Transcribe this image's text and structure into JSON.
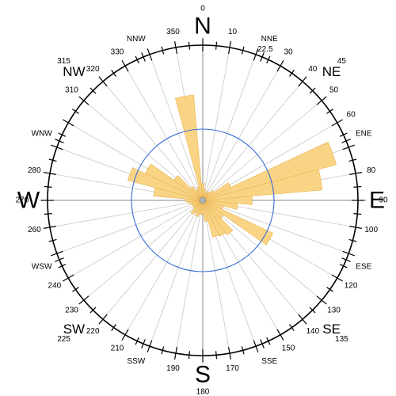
{
  "chart_data": {
    "type": "polar-rose",
    "grid": true,
    "ring": {
      "color": "#3a6fd8",
      "label": ""
    },
    "colors": {
      "sector_fill": "#f9d27e",
      "sector_stroke": "#e8b24d",
      "axis": "#000000",
      "grid": "#c8c8c8",
      "cross": "#8a8a8a"
    },
    "cardinal_labels": [
      {
        "text": "N",
        "deg": 0
      },
      {
        "text": "E",
        "deg": 90
      },
      {
        "text": "S",
        "deg": 180
      },
      {
        "text": "W",
        "deg": 270
      }
    ],
    "intercardinal_labels": [
      {
        "text": "NE",
        "deg": 45
      },
      {
        "text": "SE",
        "deg": 135
      },
      {
        "text": "SW",
        "deg": 225
      },
      {
        "text": "NW",
        "deg": 315
      }
    ],
    "minor_labels": [
      {
        "text": "NNE",
        "deg": 22.5
      },
      {
        "text": "ENE",
        "deg": 67.5
      },
      {
        "text": "ESE",
        "deg": 112.5
      },
      {
        "text": "SSE",
        "deg": 157.5
      },
      {
        "text": "SSW",
        "deg": 202.5
      },
      {
        "text": "WSW",
        "deg": 247.5
      },
      {
        "text": "WNW",
        "deg": 292.5
      },
      {
        "text": "NNW",
        "deg": 337.5
      }
    ],
    "degree_labels": [
      {
        "text": "0",
        "deg": 0
      },
      {
        "text": "10",
        "deg": 10
      },
      {
        "text": "22.5",
        "deg": 22.5
      },
      {
        "text": "30",
        "deg": 30
      },
      {
        "text": "40",
        "deg": 40
      },
      {
        "text": "45",
        "deg": 45
      },
      {
        "text": "50",
        "deg": 50
      },
      {
        "text": "60",
        "deg": 60
      },
      {
        "text": "80",
        "deg": 80
      },
      {
        "text": "90",
        "deg": 90
      },
      {
        "text": "100",
        "deg": 100
      },
      {
        "text": "120",
        "deg": 120
      },
      {
        "text": "130",
        "deg": 130
      },
      {
        "text": "135",
        "deg": 135
      },
      {
        "text": "140",
        "deg": 140
      },
      {
        "text": "150",
        "deg": 150
      },
      {
        "text": "170",
        "deg": 170
      },
      {
        "text": "180",
        "deg": 180
      },
      {
        "text": "190",
        "deg": 190
      },
      {
        "text": "210",
        "deg": 210
      },
      {
        "text": "220",
        "deg": 220
      },
      {
        "text": "225",
        "deg": 225
      },
      {
        "text": "230",
        "deg": 230
      },
      {
        "text": "240",
        "deg": 240
      },
      {
        "text": "260",
        "deg": 260
      },
      {
        "text": "270",
        "deg": 270
      },
      {
        "text": "280",
        "deg": 280
      },
      {
        "text": "310",
        "deg": 310
      },
      {
        "text": "315",
        "deg": 315
      },
      {
        "text": "320",
        "deg": 320
      },
      {
        "text": "330",
        "deg": 330
      },
      {
        "text": "350",
        "deg": 350
      }
    ],
    "sector_width_deg": 10,
    "sectors": [
      {
        "deg": 0,
        "value": 0.12
      },
      {
        "deg": 10,
        "value": 0.08
      },
      {
        "deg": 20,
        "value": 0.05
      },
      {
        "deg": 30,
        "value": 0.07
      },
      {
        "deg": 40,
        "value": 0.07
      },
      {
        "deg": 50,
        "value": 0.1
      },
      {
        "deg": 60,
        "value": 0.22
      },
      {
        "deg": 70,
        "value": 0.98
      },
      {
        "deg": 80,
        "value": 0.85
      },
      {
        "deg": 90,
        "value": 0.35
      },
      {
        "deg": 100,
        "value": 0.25
      },
      {
        "deg": 110,
        "value": 0.15
      },
      {
        "deg": 120,
        "value": 0.55
      },
      {
        "deg": 130,
        "value": 0.18
      },
      {
        "deg": 140,
        "value": 0.3
      },
      {
        "deg": 150,
        "value": 0.28
      },
      {
        "deg": 160,
        "value": 0.27
      },
      {
        "deg": 170,
        "value": 0.15
      },
      {
        "deg": 180,
        "value": 0.1
      },
      {
        "deg": 190,
        "value": 0.1
      },
      {
        "deg": 200,
        "value": 0.12
      },
      {
        "deg": 210,
        "value": 0.1
      },
      {
        "deg": 220,
        "value": 0.12
      },
      {
        "deg": 230,
        "value": 0.08
      },
      {
        "deg": 240,
        "value": 0.08
      },
      {
        "deg": 250,
        "value": 0.08
      },
      {
        "deg": 260,
        "value": 0.1
      },
      {
        "deg": 270,
        "value": 0.12
      },
      {
        "deg": 280,
        "value": 0.35
      },
      {
        "deg": 290,
        "value": 0.55
      },
      {
        "deg": 300,
        "value": 0.45
      },
      {
        "deg": 310,
        "value": 0.25
      },
      {
        "deg": 320,
        "value": 0.12
      },
      {
        "deg": 330,
        "value": 0.08
      },
      {
        "deg": 340,
        "value": 0.1
      },
      {
        "deg": 350,
        "value": 0.75
      }
    ]
  }
}
